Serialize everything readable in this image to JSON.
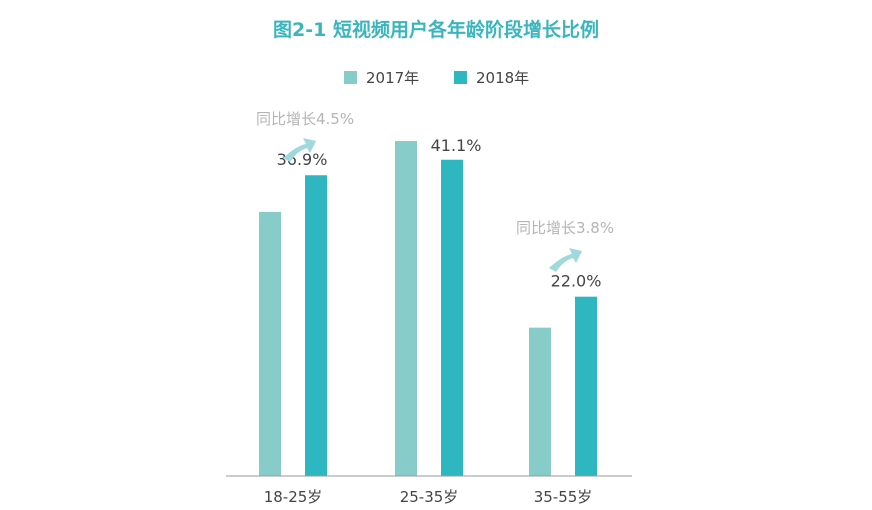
{
  "title": "图2-1   短视频用户各年龄阶段增长比例",
  "legend": [
    {
      "label": "2017年",
      "color": "#88ccca"
    },
    {
      "label": "2018年",
      "color": "#2fb7c1"
    }
  ],
  "annotations": [
    {
      "text": "同比增长4.5%",
      "category": "18-25岁",
      "icon": "up-arrow-icon"
    },
    {
      "text": "同比增长3.8%",
      "category": "35-55岁",
      "icon": "up-arrow-icon"
    }
  ],
  "colors": {
    "title": "#3bb5bd",
    "axis": "#999999",
    "text": "#444444",
    "annotation_text": "#b5b5b5",
    "annotation_arrow": "#9fd9dc"
  },
  "chart_data": {
    "type": "bar",
    "title": "图2-1   短视频用户各年龄阶段增长比例",
    "categories": [
      "18-25岁",
      "25-35岁",
      "35-55岁"
    ],
    "series": [
      {
        "name": "2017年",
        "values": [
          32.4,
          41.1,
          18.2
        ]
      },
      {
        "name": "2018年",
        "values": [
          36.9,
          38.8,
          22.0
        ]
      }
    ],
    "data_labels": [
      "36.9%",
      "41.1%",
      "22.0%"
    ],
    "ylim": [
      0,
      41.1
    ],
    "grid": false,
    "legend_position": "top-center"
  }
}
